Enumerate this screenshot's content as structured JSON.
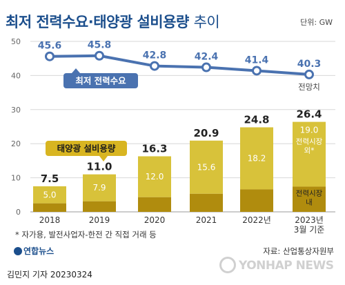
{
  "title_bold": "최저 전력수요·태양광 설비용량",
  "title_light": "추이",
  "unit": "단위: GW",
  "chart_data": {
    "type": "line+bar",
    "categories": [
      "2018",
      "2019",
      "2020",
      "2021",
      "2022년",
      "2023년 3월 기준"
    ],
    "y_ticks": [
      "0",
      "10",
      "20",
      "30",
      "40",
      "50"
    ],
    "ylim": [
      0,
      50
    ],
    "line_series": {
      "name": "최저 전력수요",
      "values": [
        45.6,
        45.8,
        42.8,
        42.4,
        41.4,
        40.3
      ],
      "labels": [
        "45.6",
        "45.8",
        "42.8",
        "42.4",
        "41.4",
        "40.3"
      ],
      "color": "#4a72b0",
      "last_point_note": "전망치"
    },
    "bar_series": {
      "name": "태양광 설비용량",
      "totals": [
        7.5,
        11.0,
        16.3,
        20.9,
        24.8,
        26.4
      ],
      "total_labels": [
        "7.5",
        "11.0",
        "16.3",
        "20.9",
        "24.8",
        "26.4"
      ],
      "upper_values": [
        5.0,
        7.9,
        12.0,
        15.6,
        18.2,
        19.0
      ],
      "upper_labels": [
        "5.0",
        "7.9",
        "12.0",
        "15.6",
        "18.2",
        "19.0"
      ],
      "lower_values": [
        2.5,
        3.1,
        4.3,
        5.3,
        6.6,
        7.4
      ],
      "upper_series_label": "전력시장 외*",
      "lower_series_label": "전력시장 내",
      "upper_color": "#d8c23a",
      "lower_color": "#b08c0e"
    },
    "grid": true
  },
  "footnote": "* 자가용, 발전사업자-한전 간 직접 거래 등",
  "source": "자료: 산업통상자원부",
  "logo": "연합뉴스",
  "credit": "김민지 기자  20230324",
  "watermark": "YONHAP NEWS"
}
